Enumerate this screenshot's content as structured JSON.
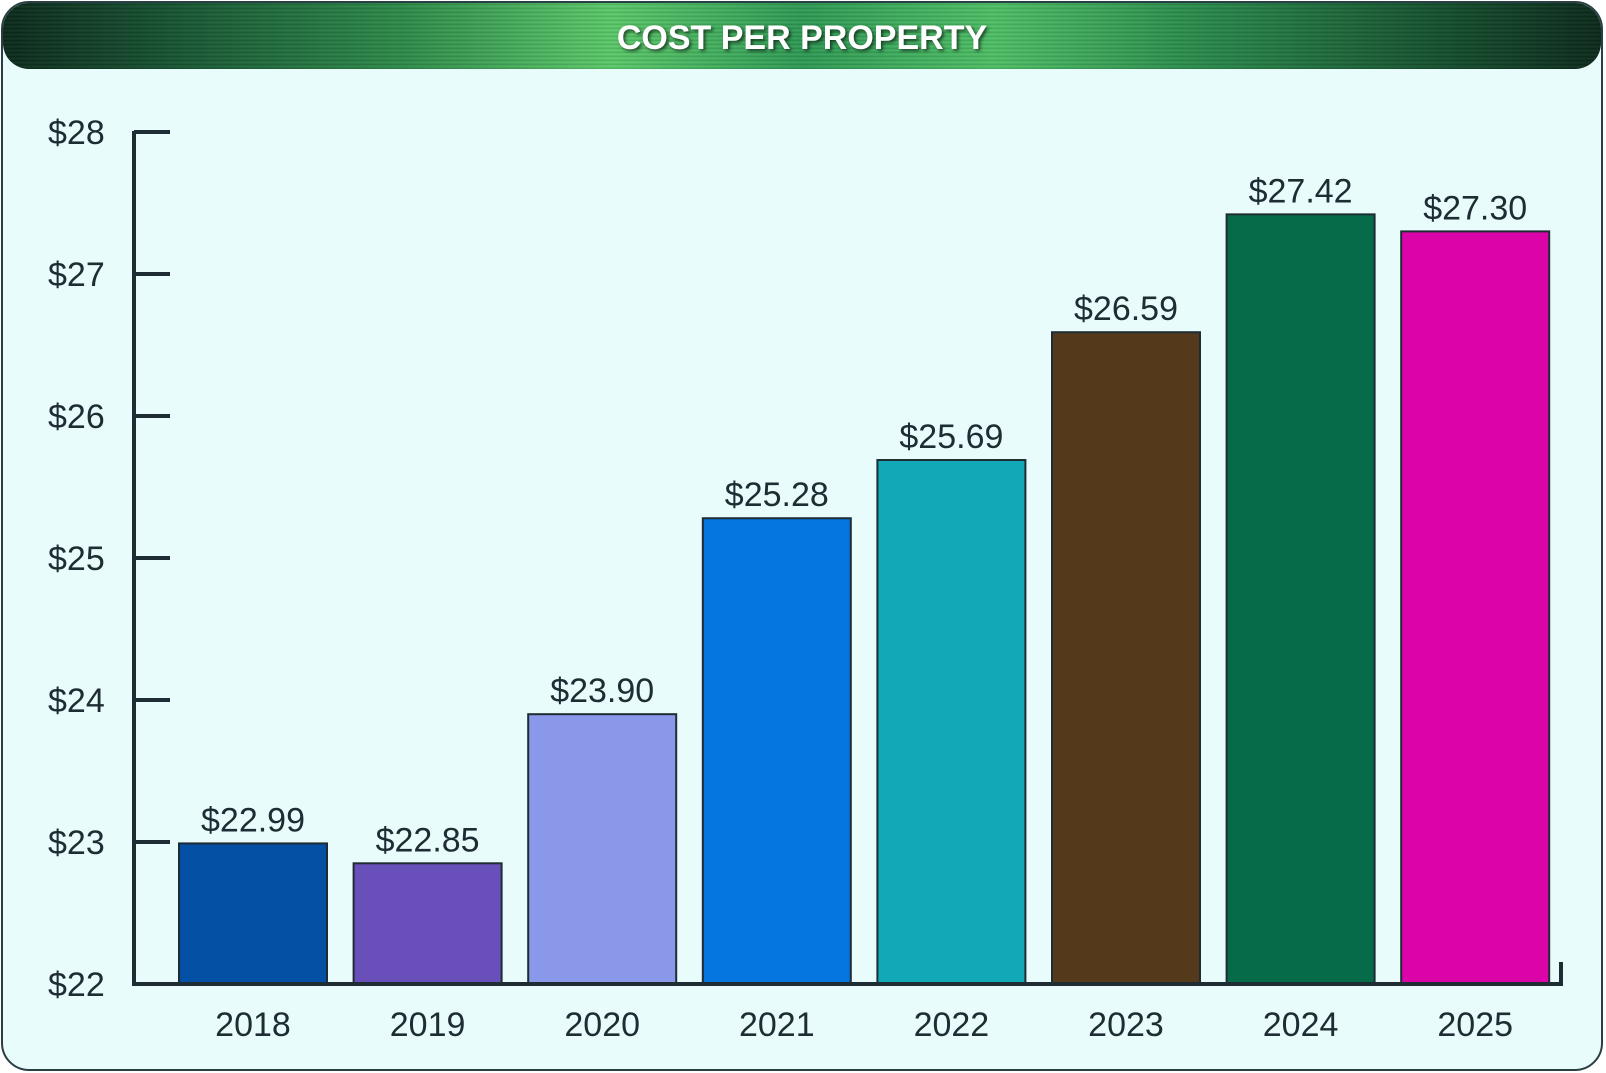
{
  "chart_data": {
    "type": "bar",
    "title": "COST PER PROPERTY",
    "categories": [
      "2018",
      "2019",
      "2020",
      "2021",
      "2022",
      "2023",
      "2024",
      "2025"
    ],
    "values": [
      22.99,
      22.85,
      23.9,
      25.28,
      25.69,
      26.59,
      27.42,
      27.3
    ],
    "value_labels": [
      "$22.99",
      "$22.85",
      "$23.90",
      "$25.28",
      "$25.69",
      "$26.59",
      "$27.42",
      "$27.30"
    ],
    "colors": [
      "#0350a4",
      "#684fba",
      "#8a98e9",
      "#0575e0",
      "#11a9b8",
      "#54391b",
      "#056b49",
      "#db04a8"
    ],
    "ylim": [
      22,
      28
    ],
    "y_ticks": [
      22,
      23,
      24,
      25,
      26,
      27,
      28
    ],
    "y_tick_labels": [
      "$22",
      "$23",
      "$24",
      "$25",
      "$26",
      "$27",
      "$28"
    ],
    "xlabel": "",
    "ylabel": "",
    "grid": false,
    "legend": "none"
  }
}
